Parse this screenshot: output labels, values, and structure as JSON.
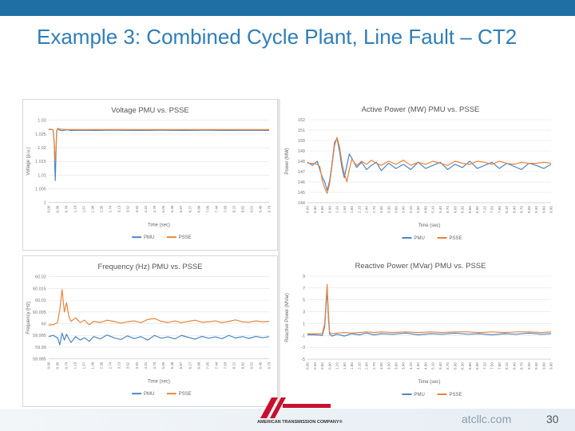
{
  "slide": {
    "title": "Example 3: Combined Cycle Plant, Line Fault – CT2",
    "website": "atcllc.com",
    "page_number": "30",
    "logo_text": "AMERICAN TRANSMISSION COMPANY®"
  },
  "colors": {
    "pmu": "#4a86c5",
    "psse": "#e8843a",
    "topbar": "#1f6fa5",
    "title": "#2f7dba"
  },
  "chart_data": [
    {
      "id": "voltage",
      "type": "line",
      "title": "Voltage PMU vs. PSSE",
      "xlabel": "Time (sec)",
      "ylabel": "Voltage (p.u.)",
      "ylim": [
        1,
        1.03
      ],
      "yticks": [
        "1",
        "1.005",
        "1.01",
        "1.015",
        "1.02",
        "1.025",
        "1.03"
      ],
      "xticks": [
        "0.00",
        "0.39",
        "0.78",
        "1.18",
        "1.57",
        "1.96",
        "2.35",
        "2.74",
        "3.13",
        "3.52",
        "3.92",
        "4.31",
        "4.70",
        "5.09",
        "5.48",
        "5.87",
        "6.27",
        "6.66",
        "7.05",
        "7.44",
        "7.83",
        "8.22",
        "8.62",
        "9.01",
        "9.40",
        "9.79"
      ],
      "legend": [
        "PMU",
        "PSSE"
      ],
      "legend_position": "bottom",
      "grid": true,
      "series": [
        {
          "name": "PMU",
          "x": [
            0,
            0.1,
            0.2,
            0.25,
            0.28,
            0.3,
            0.33,
            0.36,
            0.4,
            0.5,
            0.6,
            0.8,
            1.0,
            1.5,
            2,
            3,
            4,
            5,
            6,
            7,
            8,
            9,
            9.79
          ],
          "y": [
            1.0267,
            1.0267,
            1.0265,
            1.022,
            1.012,
            1.008,
            1.018,
            1.0262,
            1.0268,
            1.0264,
            1.0262,
            1.0265,
            1.0263,
            1.0264,
            1.0263,
            1.0264,
            1.0263,
            1.0264,
            1.0263,
            1.0264,
            1.0263,
            1.0264,
            1.0263
          ]
        },
        {
          "name": "PSSE",
          "x": [
            0,
            0.1,
            0.2,
            0.25,
            0.28,
            0.3,
            0.33,
            0.36,
            0.4,
            0.5,
            0.6,
            0.8,
            1.0,
            1.5,
            2,
            3,
            4,
            5,
            6,
            7,
            8,
            9,
            9.79
          ],
          "y": [
            1.0266,
            1.0266,
            1.0266,
            1.0226,
            1.0168,
            1.015,
            1.0196,
            1.0255,
            1.0271,
            1.0268,
            1.0267,
            1.0266,
            1.0266,
            1.0266,
            1.0266,
            1.0266,
            1.0266,
            1.0266,
            1.0266,
            1.0266,
            1.0266,
            1.0266,
            1.0266
          ]
        }
      ]
    },
    {
      "id": "active_power",
      "type": "line",
      "title": "Active Power (MW) PMU vs. PSSE",
      "xlabel": "Time (sec)",
      "ylabel": "Power (MW)",
      "ylim": [
        144,
        152
      ],
      "yticks": [
        "144",
        "145",
        "146",
        "147",
        "148",
        "149",
        "150",
        "151",
        "152"
      ],
      "xticks": [
        "0.00",
        "0.30",
        "0.60",
        "0.90",
        "1.20",
        "1.50",
        "1.80",
        "2.10",
        "2.40",
        "2.70",
        "3.00",
        "3.30",
        "3.60",
        "3.90",
        "4.20",
        "4.50",
        "4.80",
        "5.10",
        "5.40",
        "5.70",
        "6.00",
        "6.30",
        "6.60",
        "6.90",
        "7.20",
        "7.50",
        "7.80",
        "8.10",
        "8.40",
        "8.70",
        "9.00",
        "9.30",
        "9.60",
        "9.90"
      ],
      "legend": [
        "PMU",
        "PSSE"
      ],
      "legend_position": "bottom",
      "grid": true,
      "series": [
        {
          "name": "PMU",
          "x": [
            0,
            0.2,
            0.4,
            0.5,
            0.6,
            0.7,
            0.8,
            0.9,
            1.0,
            1.1,
            1.2,
            1.3,
            1.4,
            1.5,
            1.6,
            1.7,
            1.8,
            2.0,
            2.2,
            2.4,
            2.6,
            2.8,
            3.0,
            3.3,
            3.6,
            3.9,
            4.2,
            4.5,
            4.8,
            5.1,
            5.4,
            5.7,
            6.0,
            6.3,
            6.6,
            6.9,
            7.2,
            7.5,
            7.8,
            8.1,
            8.4,
            8.7,
            9.0,
            9.3,
            9.6,
            9.9
          ],
          "y": [
            147.9,
            147.6,
            148.0,
            147.2,
            146.5,
            146.0,
            145.2,
            146.1,
            147.8,
            149.8,
            150.2,
            149.0,
            147.4,
            146.4,
            147.6,
            148.7,
            148.3,
            147.4,
            147.9,
            147.2,
            147.6,
            147.9,
            147.1,
            147.8,
            147.3,
            147.7,
            147.2,
            147.9,
            147.3,
            147.6,
            147.9,
            147.2,
            147.7,
            147.4,
            148.0,
            147.3,
            147.6,
            147.9,
            147.3,
            147.8,
            147.5,
            147.2,
            147.8,
            147.6,
            147.3,
            147.7
          ]
        },
        {
          "name": "PSSE",
          "x": [
            0,
            0.2,
            0.4,
            0.5,
            0.6,
            0.7,
            0.8,
            0.9,
            1.0,
            1.1,
            1.2,
            1.3,
            1.4,
            1.5,
            1.6,
            1.7,
            1.8,
            2.0,
            2.2,
            2.4,
            2.6,
            2.8,
            3.0,
            3.3,
            3.6,
            3.9,
            4.2,
            4.5,
            4.8,
            5.1,
            5.4,
            5.7,
            6.0,
            6.3,
            6.6,
            6.9,
            7.2,
            7.5,
            7.8,
            8.1,
            8.4,
            8.7,
            9.0,
            9.3,
            9.6,
            9.9
          ],
          "y": [
            147.8,
            147.8,
            147.7,
            147.5,
            146.2,
            145.4,
            144.9,
            145.8,
            147.6,
            149.5,
            150.3,
            149.4,
            147.9,
            146.8,
            146.0,
            147.2,
            148.2,
            147.6,
            148.0,
            147.7,
            148.1,
            147.8,
            147.6,
            148.0,
            147.7,
            148.1,
            147.6,
            147.9,
            147.7,
            148.0,
            147.8,
            147.6,
            148.0,
            147.8,
            147.7,
            148.0,
            147.9,
            147.7,
            148.0,
            147.8,
            147.7,
            147.9,
            147.8,
            147.8,
            147.9,
            147.8
          ]
        }
      ]
    },
    {
      "id": "frequency",
      "type": "line",
      "title": "Frequency (Hz) PMU vs. PSSE",
      "xlabel": "Time (sec)",
      "ylabel": "Frequency (Hz)",
      "ylim": [
        59.985,
        60.02
      ],
      "yticks": [
        "59.985",
        "59.99",
        "59.995",
        "60",
        "60.005",
        "60.01",
        "60.015",
        "60.02"
      ],
      "xticks": [
        "0.00",
        "0.39",
        "0.79",
        "1.18",
        "1.57",
        "1.96",
        "2.35",
        "2.74",
        "3.13",
        "3.52",
        "3.92",
        "4.31",
        "4.70",
        "5.09",
        "5.48",
        "5.87",
        "6.27",
        "6.66",
        "7.05",
        "7.44",
        "7.83",
        "8.22",
        "8.62",
        "9.01",
        "9.40",
        "9.79"
      ],
      "legend": [
        "PMU",
        "PSSE"
      ],
      "legend_position": "bottom",
      "grid": true,
      "series": [
        {
          "name": "PMU",
          "x": [
            0,
            0.2,
            0.4,
            0.5,
            0.6,
            0.7,
            0.8,
            0.9,
            1.0,
            1.2,
            1.4,
            1.6,
            1.8,
            2.0,
            2.3,
            2.6,
            2.9,
            3.2,
            3.5,
            3.8,
            4.1,
            4.4,
            4.7,
            5.0,
            5.3,
            5.6,
            5.9,
            6.2,
            6.5,
            6.8,
            7.1,
            7.4,
            7.7,
            8.0,
            8.3,
            8.6,
            8.9,
            9.2,
            9.5,
            9.79
          ],
          "y": [
            59.9945,
            59.995,
            59.994,
            59.991,
            59.996,
            59.993,
            59.9955,
            59.9935,
            59.992,
            59.9945,
            59.993,
            59.994,
            59.9925,
            59.9945,
            59.9935,
            59.9952,
            59.994,
            59.9932,
            59.9948,
            59.9936,
            59.9945,
            59.993,
            59.995,
            59.9938,
            59.9944,
            59.9935,
            59.995,
            59.9942,
            59.9934,
            59.9946,
            59.9938,
            59.9944,
            59.9936,
            59.995,
            59.9939,
            59.9945,
            59.9937,
            59.9946,
            59.994,
            59.9945
          ]
        },
        {
          "name": "PSSE",
          "x": [
            0,
            0.2,
            0.4,
            0.5,
            0.6,
            0.7,
            0.8,
            0.9,
            1.0,
            1.2,
            1.4,
            1.6,
            1.8,
            2.0,
            2.3,
            2.6,
            2.9,
            3.2,
            3.5,
            3.8,
            4.1,
            4.4,
            4.7,
            5.0,
            5.3,
            5.6,
            5.9,
            6.2,
            6.5,
            6.8,
            7.1,
            7.4,
            7.7,
            8.0,
            8.3,
            8.6,
            8.9,
            9.2,
            9.5,
            9.79
          ],
          "y": [
            59.9995,
            59.9995,
            60.0005,
            60.006,
            60.0145,
            60.005,
            60.009,
            60.003,
            60.001,
            60.0025,
            60.0005,
            60.0015,
            59.9995,
            60.001,
            60.0005,
            60.0015,
            60.001,
            60.0002,
            60.0008,
            60.0012,
            60.0004,
            60.0018,
            60.0022,
            60.001,
            60.0005,
            60.0012,
            60.0004,
            60.001,
            60.0015,
            60.0006,
            60.0008,
            60.0012,
            60.0004,
            60.001,
            60.0016,
            60.0008,
            60.0006,
            60.0012,
            60.0008,
            60.001
          ]
        }
      ]
    },
    {
      "id": "reactive_power",
      "type": "line",
      "title": "Reactive Power (MVar) PMU vs. PSSE",
      "xlabel": "Time (sec)",
      "ylabel": "Reactive Power (MVar)",
      "ylim": [
        -5,
        9
      ],
      "yticks": [
        "-5",
        "-3",
        "-1",
        "1",
        "3",
        "5",
        "7",
        "9"
      ],
      "xticks": [
        "0.00",
        "0.30",
        "0.60",
        "0.90",
        "1.20",
        "1.50",
        "1.80",
        "2.10",
        "2.40",
        "2.70",
        "3.00",
        "3.30",
        "3.60",
        "3.90",
        "4.20",
        "4.50",
        "4.80",
        "5.10",
        "5.40",
        "5.70",
        "6.00",
        "6.30",
        "6.60",
        "6.90",
        "7.20",
        "7.50",
        "7.80",
        "8.10",
        "8.40",
        "8.70",
        "9.00",
        "9.30",
        "9.60",
        "9.90"
      ],
      "legend": [
        "PMU",
        "PSSE"
      ],
      "legend_position": "bottom",
      "grid": true,
      "series": [
        {
          "name": "PMU",
          "x": [
            0,
            0.3,
            0.6,
            0.7,
            0.8,
            0.85,
            0.9,
            1.0,
            1.2,
            1.5,
            1.8,
            2.1,
            2.4,
            2.7,
            3.0,
            3.5,
            4.0,
            4.5,
            5.0,
            5.5,
            6.0,
            6.5,
            7.0,
            7.5,
            8.0,
            8.5,
            9.0,
            9.5,
            9.9
          ],
          "y": [
            -0.9,
            -0.9,
            -1.0,
            0.5,
            6.8,
            2.0,
            -0.8,
            -1.1,
            -0.8,
            -1.1,
            -0.7,
            -0.9,
            -0.6,
            -0.9,
            -0.7,
            -0.8,
            -0.6,
            -0.9,
            -0.7,
            -0.8,
            -0.6,
            -0.8,
            -0.7,
            -0.9,
            -0.7,
            -0.8,
            -0.6,
            -0.8,
            -0.7
          ]
        },
        {
          "name": "PSSE",
          "x": [
            0,
            0.3,
            0.6,
            0.7,
            0.8,
            0.85,
            0.9,
            1.0,
            1.2,
            1.5,
            1.8,
            2.1,
            2.4,
            2.7,
            3.0,
            3.5,
            4.0,
            4.5,
            5.0,
            5.5,
            6.0,
            6.5,
            7.0,
            7.5,
            8.0,
            8.5,
            9.0,
            9.5,
            9.9
          ],
          "y": [
            -0.7,
            -0.7,
            -0.7,
            1.0,
            7.6,
            3.0,
            -0.5,
            -0.7,
            -0.6,
            -0.5,
            -0.6,
            -0.5,
            -0.4,
            -0.5,
            -0.4,
            -0.5,
            -0.4,
            -0.5,
            -0.4,
            -0.5,
            -0.4,
            -0.4,
            -0.5,
            -0.4,
            -0.5,
            -0.4,
            -0.4,
            -0.5,
            -0.4
          ]
        }
      ]
    }
  ]
}
